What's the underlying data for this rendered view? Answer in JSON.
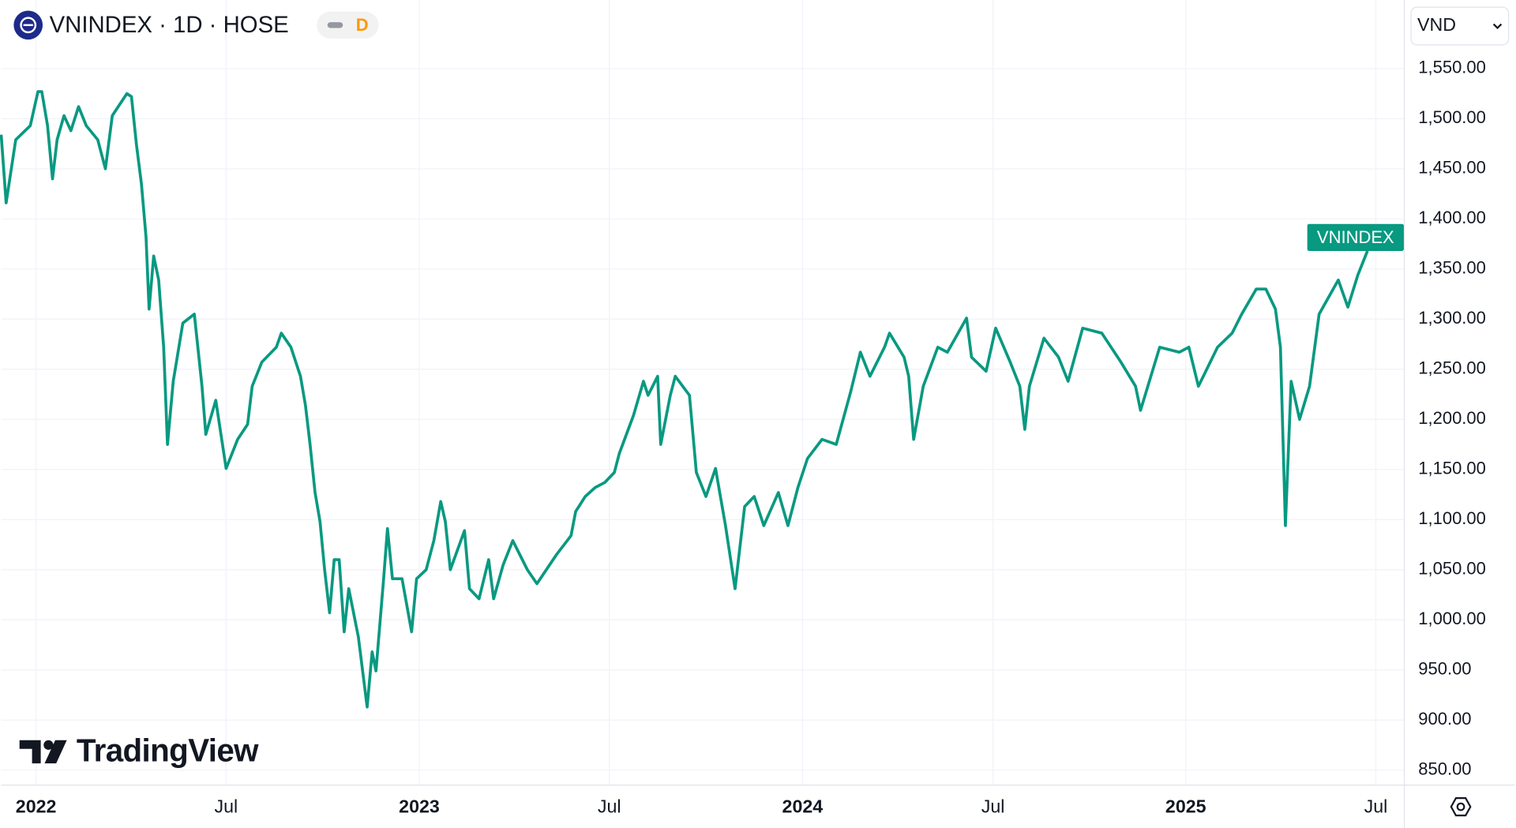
{
  "chart_data": {
    "type": "line",
    "title": "VNINDEX · 1D · HOSE",
    "interval_badge": "D",
    "currency": "VND",
    "brand": "TradingView",
    "xlim": [
      2021.909,
      2025.569
    ],
    "xticks": [
      2022,
      {
        "value": 2022.496,
        "label": "Jul"
      },
      2023,
      {
        "value": 2023.496,
        "label": "Jul"
      },
      2024,
      {
        "value": 2024.497,
        "label": "Jul"
      },
      2025,
      {
        "value": 2025.496,
        "label": "Jul"
      }
    ],
    "ylim": [
      835.6,
      1618.4
    ],
    "yticks": [
      {
        "value": 850,
        "label": "850.00"
      },
      {
        "value": 900,
        "label": "900.00"
      },
      {
        "value": 950,
        "label": "950.00"
      },
      {
        "value": 1000,
        "label": "1,000.00"
      },
      {
        "value": 1050,
        "label": "1,050.00"
      },
      {
        "value": 1100,
        "label": "1,100.00"
      },
      {
        "value": 1150,
        "label": "1,150.00"
      },
      {
        "value": 1200,
        "label": "1,200.00"
      },
      {
        "value": 1250,
        "label": "1,250.00"
      },
      {
        "value": 1300,
        "label": "1,300.00"
      },
      {
        "value": 1350,
        "label": "1,350.00"
      },
      {
        "value": 1400,
        "label": "1,400.00"
      },
      {
        "value": 1450,
        "label": "1,450.00"
      },
      {
        "value": 1500,
        "label": "1,500.00"
      },
      {
        "value": 1550,
        "label": "1,550.00"
      }
    ],
    "grid": true,
    "x": [
      2021.909,
      2021.922,
      2021.947,
      2021.985,
      2022.005,
      2022.015,
      2022.03,
      2022.043,
      2022.055,
      2022.073,
      2022.091,
      2022.111,
      2022.131,
      2022.161,
      2022.181,
      2022.199,
      2022.237,
      2022.249,
      2022.262,
      2022.275,
      2022.287,
      2022.295,
      2022.307,
      2022.32,
      2022.333,
      2022.343,
      2022.358,
      2022.383,
      2022.413,
      2022.433,
      2022.443,
      2022.469,
      2022.496,
      2022.526,
      2022.552,
      2022.564,
      2022.589,
      2022.627,
      2022.64,
      2022.665,
      2022.69,
      2022.703,
      2022.715,
      2022.728,
      2022.741,
      2022.753,
      2022.766,
      2022.778,
      2022.791,
      2022.804,
      2022.816,
      2022.841,
      2022.864,
      2022.877,
      2022.887,
      2022.907,
      2022.917,
      2022.93,
      2022.955,
      2022.98,
      2022.993,
      2023.018,
      2023.038,
      2023.056,
      2023.068,
      2023.081,
      2023.118,
      2023.131,
      2023.156,
      2023.181,
      2023.194,
      2023.219,
      2023.244,
      2023.282,
      2023.307,
      2023.358,
      2023.396,
      2023.408,
      2023.433,
      2023.459,
      2023.484,
      2023.509,
      2023.522,
      2023.559,
      2023.585,
      2023.597,
      2023.622,
      2023.63,
      2023.655,
      2023.668,
      2023.705,
      2023.723,
      2023.748,
      2023.773,
      2023.799,
      2023.824,
      2023.849,
      2023.874,
      2023.899,
      2023.937,
      2023.962,
      2023.988,
      2024.013,
      2024.051,
      2024.088,
      2024.126,
      2024.151,
      2024.176,
      2024.214,
      2024.227,
      2024.265,
      2024.277,
      2024.29,
      2024.315,
      2024.353,
      2024.378,
      2024.428,
      2024.441,
      2024.479,
      2024.504,
      2024.542,
      2024.567,
      2024.58,
      2024.592,
      2024.63,
      2024.668,
      2024.693,
      2024.731,
      2024.781,
      2024.831,
      2024.869,
      2024.882,
      2024.932,
      2024.983,
      2025.008,
      2025.033,
      2025.083,
      2025.121,
      2025.146,
      2025.184,
      2025.209,
      2025.234,
      2025.247,
      2025.26,
      2025.275,
      2025.297,
      2025.323,
      2025.348,
      2025.398,
      2025.423,
      2025.449,
      2025.474
    ],
    "series": [
      {
        "name": "VNINDEX",
        "color": "#089981",
        "values": [
          1484,
          1416,
          1479,
          1493,
          1527,
          1527,
          1493,
          1440,
          1479,
          1503,
          1488,
          1512,
          1493,
          1479,
          1450,
          1503,
          1525,
          1522,
          1474,
          1435,
          1382,
          1310,
          1363,
          1339,
          1272,
          1175,
          1238,
          1296,
          1305,
          1233,
          1185,
          1219,
          1151,
          1180,
          1195,
          1233,
          1257,
          1272,
          1286,
          1272,
          1243,
          1214,
          1175,
          1127,
          1098,
          1050,
          1007,
          1060,
          1060,
          988,
          1031,
          983,
          913,
          968,
          949,
          1041,
          1091,
          1041,
          1041,
          988,
          1041,
          1050,
          1079,
          1118,
          1098,
          1050,
          1089,
          1031,
          1021,
          1060,
          1021,
          1055,
          1079,
          1050,
          1036,
          1065,
          1084,
          1108,
          1123,
          1132,
          1137,
          1147,
          1166,
          1204,
          1238,
          1224,
          1243,
          1175,
          1224,
          1243,
          1224,
          1147,
          1123,
          1151,
          1094,
          1031,
          1113,
          1123,
          1094,
          1127,
          1094,
          1132,
          1161,
          1180,
          1175,
          1228,
          1267,
          1243,
          1272,
          1286,
          1262,
          1243,
          1180,
          1233,
          1272,
          1267,
          1301,
          1262,
          1248,
          1291,
          1257,
          1233,
          1190,
          1233,
          1281,
          1262,
          1238,
          1291,
          1286,
          1257,
          1233,
          1209,
          1272,
          1267,
          1272,
          1233,
          1272,
          1286,
          1305,
          1330,
          1330,
          1310,
          1272,
          1094,
          1238,
          1200,
          1233,
          1305,
          1339,
          1312,
          1344,
          1368
        ]
      }
    ]
  }
}
